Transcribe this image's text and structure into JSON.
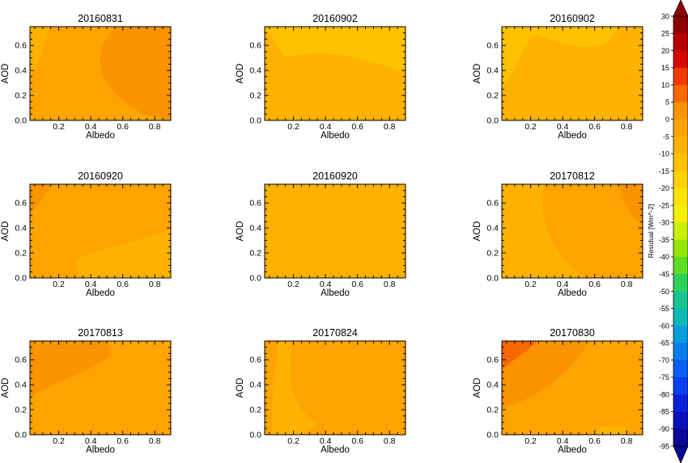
{
  "chart_data": {
    "type": "contour",
    "xlabel": "Albedo",
    "ylabel": "AOD",
    "xlim": [
      0.02,
      0.9
    ],
    "ylim": [
      0.0,
      0.75
    ],
    "xticks": [
      "0.2",
      "0.4",
      "0.6",
      "0.8"
    ],
    "yticks": [
      "0.0",
      "0.2",
      "0.4",
      "0.6"
    ],
    "colorbar": {
      "label": "Residual [Wm^-2]",
      "ticks": [
        "30",
        "25",
        "20",
        "15",
        "10",
        "5",
        "0",
        "-5",
        "-10",
        "-15",
        "-20",
        "-25",
        "-30",
        "-35",
        "-40",
        "-45",
        "-50",
        "-55",
        "-60",
        "-65",
        "-70",
        "-75",
        "-80",
        "-85",
        "-90",
        "-95"
      ],
      "colors": [
        "#8c0000",
        "#b50000",
        "#d80a00",
        "#ef3b00",
        "#f86800",
        "#fb9200",
        "#fda400",
        "#feb200",
        "#ffc000",
        "#ffd200",
        "#ffe300",
        "#f5f000",
        "#c8ef00",
        "#96e600",
        "#5fdc28",
        "#2fd05a",
        "#19c48e",
        "#10b8b8",
        "#0a9ed8",
        "#0a7ee8",
        "#0a5ef0",
        "#0a3ef0",
        "#0a22d8",
        "#0a12b8",
        "#0a0896",
        "#060472"
      ],
      "over_color": "#8c0000",
      "under_color": "#0a0896"
    },
    "panels": [
      {
        "title": "20160831",
        "levels": [
          0,
          5,
          -5
        ]
      },
      {
        "title": "20160902",
        "levels": [
          -5,
          -10
        ]
      },
      {
        "title": "20160902",
        "levels": [
          -5,
          -10
        ]
      },
      {
        "title": "20160920",
        "levels": [
          0,
          -5,
          5
        ]
      },
      {
        "title": "20160920",
        "levels": [
          -5
        ]
      },
      {
        "title": "20170812",
        "levels": [
          -5,
          0,
          5
        ]
      },
      {
        "title": "20170813",
        "levels": [
          0,
          5
        ]
      },
      {
        "title": "20170824",
        "levels": [
          0,
          -5
        ]
      },
      {
        "title": "20170830",
        "levels": [
          0,
          5,
          10,
          -5
        ]
      }
    ]
  }
}
